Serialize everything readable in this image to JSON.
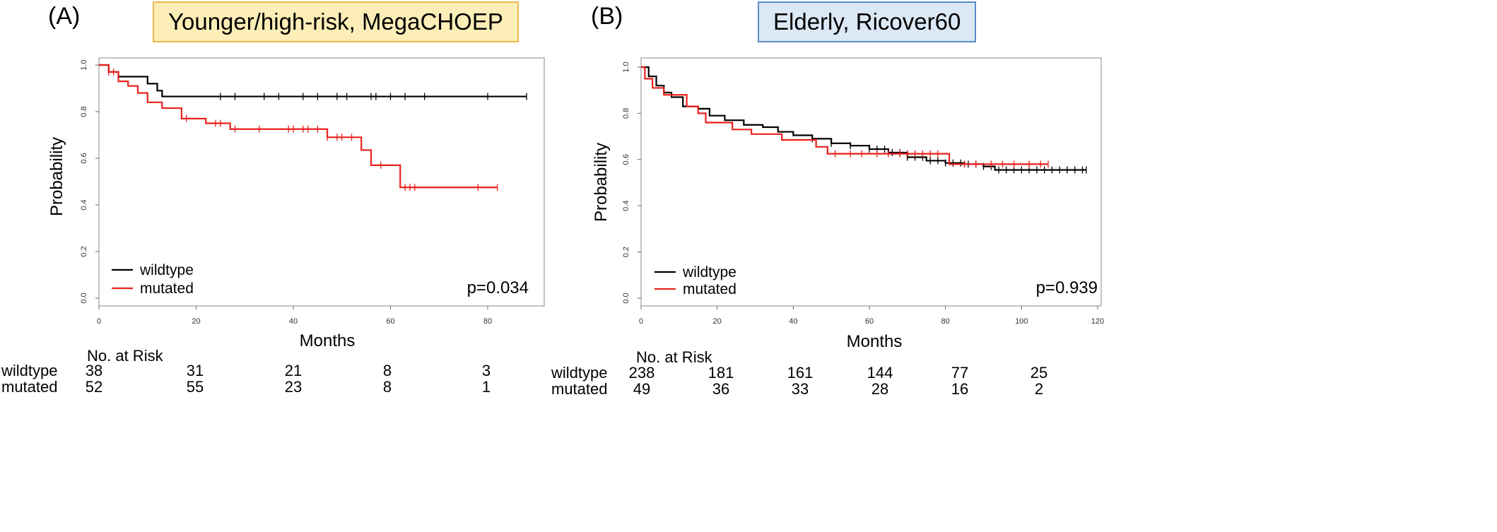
{
  "panels": [
    {
      "label": "(A)",
      "title": "Younger/high-risk, MegaCHOEP",
      "ylabel": "Probability",
      "xlabel": "Months",
      "pvalue": "p=0.034",
      "legend": [
        "wildtype",
        "mutated"
      ],
      "risk_title": "No. at Risk",
      "risk_rows": [
        {
          "label": "wildtype",
          "values": [
            "38",
            "31",
            "21",
            "8",
            "3"
          ]
        },
        {
          "label": "mutated",
          "values": [
            "52",
            "55",
            "23",
            "8",
            "1"
          ]
        }
      ]
    },
    {
      "label": "(B)",
      "title": "Elderly, Ricover60",
      "ylabel": "Probability",
      "xlabel": "Months",
      "pvalue": "p=0.939",
      "legend": [
        "wildtype",
        "mutated"
      ],
      "risk_title": "No. at Risk",
      "risk_rows": [
        {
          "label": "wildtype",
          "values": [
            "238",
            "181",
            "161",
            "144",
            "77",
            "25"
          ]
        },
        {
          "label": "mutated",
          "values": [
            "49",
            "36",
            "33",
            "28",
            "16",
            "2"
          ]
        }
      ]
    }
  ],
  "chart_data": [
    {
      "type": "line",
      "step": true,
      "xlim": [
        0,
        88
      ],
      "ylim": [
        0,
        1
      ],
      "xticks": [
        "0",
        "20",
        "40",
        "60",
        "80"
      ],
      "yticks": [
        "0.0",
        "0.2",
        "0.4",
        "0.6",
        "0.8",
        "1.0"
      ],
      "colors": {
        "wildtype": "#000000",
        "mutated": "#e8211c"
      },
      "series": [
        {
          "name": "wildtype",
          "x": [
            0,
            2,
            4,
            7,
            10,
            12,
            13,
            88
          ],
          "y": [
            1.0,
            0.97,
            0.95,
            0.95,
            0.92,
            0.89,
            0.865,
            0.865
          ],
          "censor_x": [
            25,
            28,
            34,
            37,
            42,
            45,
            49,
            51,
            56,
            57,
            60,
            63,
            67,
            80,
            88
          ]
        },
        {
          "name": "mutated",
          "x": [
            0,
            2,
            4,
            6,
            8,
            10,
            13,
            17,
            22,
            27,
            47,
            54,
            56,
            62,
            82
          ],
          "y": [
            1.0,
            0.97,
            0.93,
            0.91,
            0.88,
            0.84,
            0.815,
            0.77,
            0.75,
            0.725,
            0.69,
            0.635,
            0.57,
            0.475,
            0.475
          ],
          "censor_x": [
            2,
            3,
            18,
            24,
            25,
            28,
            33,
            39,
            40,
            42,
            43,
            45,
            47,
            49,
            50,
            52,
            58,
            63,
            64,
            65,
            78,
            82
          ]
        }
      ]
    },
    {
      "type": "line",
      "step": true,
      "xlim": [
        0,
        120
      ],
      "ylim": [
        0,
        1
      ],
      "xticks": [
        "0",
        "20",
        "40",
        "60",
        "80",
        "100",
        "120"
      ],
      "yticks": [
        "0.0",
        "0.2",
        "0.4",
        "0.6",
        "0.8",
        "1.0"
      ],
      "colors": {
        "wildtype": "#000000",
        "mutated": "#e8211c"
      },
      "series": [
        {
          "name": "wildtype",
          "x": [
            0,
            2,
            4,
            6,
            8,
            11,
            15,
            18,
            22,
            27,
            32,
            36,
            40,
            45,
            50,
            55,
            60,
            65,
            70,
            75,
            80,
            85,
            90,
            93,
            117
          ],
          "y": [
            1.0,
            0.96,
            0.92,
            0.89,
            0.87,
            0.83,
            0.82,
            0.79,
            0.77,
            0.75,
            0.74,
            0.72,
            0.705,
            0.69,
            0.67,
            0.66,
            0.645,
            0.63,
            0.61,
            0.595,
            0.585,
            0.58,
            0.57,
            0.555,
            0.555
          ],
          "censor_x": [
            45,
            50,
            55,
            60,
            62,
            64,
            66,
            68,
            70,
            72,
            74,
            76,
            78,
            80,
            82,
            84,
            86,
            88,
            90,
            92,
            94,
            96,
            98,
            100,
            102,
            104,
            106,
            108,
            110,
            112,
            114,
            116,
            117
          ]
        },
        {
          "name": "mutated",
          "x": [
            0,
            1,
            3,
            6,
            12,
            15,
            17,
            24,
            29,
            37,
            46,
            49,
            81,
            107
          ],
          "y": [
            1.0,
            0.95,
            0.91,
            0.88,
            0.83,
            0.8,
            0.76,
            0.73,
            0.71,
            0.685,
            0.655,
            0.625,
            0.58,
            0.58
          ],
          "censor_x": [
            51,
            55,
            58,
            62,
            65,
            68,
            70,
            72,
            74,
            76,
            78,
            85,
            88,
            92,
            95,
            98,
            102,
            105,
            107
          ]
        }
      ]
    }
  ]
}
